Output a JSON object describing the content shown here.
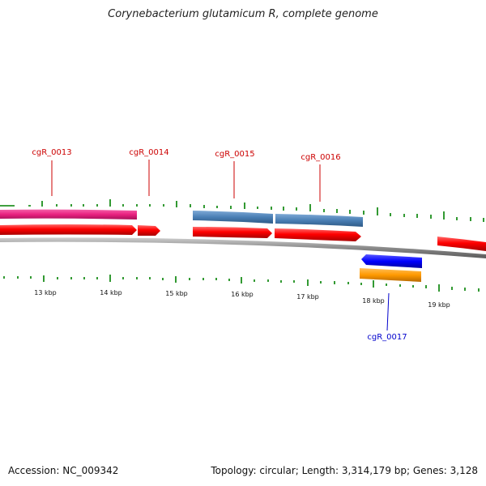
{
  "title": "Corynebacterium glutamicum R, complete genome",
  "footer": {
    "accession": "Accession: NC_009342",
    "summary": "Topology: circular; Length: 3,314,179 bp; Genes: 3,128"
  },
  "colors": {
    "forward_label": "#cc0000",
    "reverse_label": "#0000cc",
    "tick": "#008000",
    "backbone": "#888888",
    "magenta_feature": "#e8217f",
    "red_feature": "#ff0000",
    "steelblue_feature": "#4a7fb5",
    "blue_feature": "#0000ff",
    "orange_feature": "#ff9900"
  },
  "genes": [
    {
      "id": "g13",
      "label": "cgR_0013",
      "strand": "forward"
    },
    {
      "id": "g14",
      "label": "cgR_0014",
      "strand": "forward"
    },
    {
      "id": "g15",
      "label": "cgR_0015",
      "strand": "forward"
    },
    {
      "id": "g16",
      "label": "cgR_0016",
      "strand": "forward"
    },
    {
      "id": "g17",
      "label": "cgR_0017",
      "strand": "reverse"
    }
  ],
  "kbp_ticks": [
    "13 kbp",
    "14 kbp",
    "15 kbp",
    "16 kbp",
    "17 kbp",
    "18 kbp",
    "19 kbp"
  ]
}
